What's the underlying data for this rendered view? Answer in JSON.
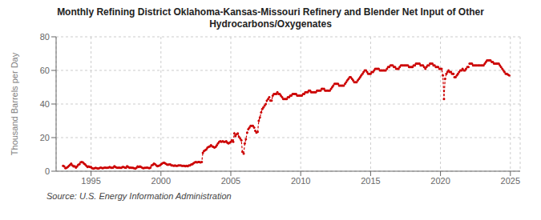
{
  "chart_data": {
    "type": "line",
    "title": "Monthly Refining District Oklahoma-Kansas-Missouri Refinery and Blender Net Input of Other\nHydrocarbons/Oxygenates",
    "y_label": "Thousand Barrels per Day",
    "annotations": [
      "Source: U.S. Energy Information Administration"
    ],
    "color": "#cc0000",
    "line_style": "dashed",
    "marker": "circle",
    "grid": true,
    "xlim": [
      1992.5,
      2025.7
    ],
    "xticks": [
      1995,
      2000,
      2005,
      2010,
      2015,
      2020,
      2025
    ],
    "ylim": [
      0,
      80
    ],
    "yticks": [
      0,
      20,
      40,
      60,
      80
    ],
    "x": [
      1993.0,
      1993.08,
      1993.17,
      1993.25,
      1993.33,
      1993.42,
      1993.5,
      1993.58,
      1993.67,
      1993.75,
      1993.83,
      1993.92,
      1994.0,
      1994.08,
      1994.17,
      1994.25,
      1994.33,
      1994.42,
      1994.5,
      1994.58,
      1994.67,
      1994.75,
      1994.83,
      1994.92,
      1995.0,
      1995.08,
      1995.17,
      1995.25,
      1995.33,
      1995.42,
      1995.5,
      1995.58,
      1995.67,
      1995.75,
      1995.83,
      1995.92,
      1996.0,
      1996.08,
      1996.17,
      1996.25,
      1996.33,
      1996.42,
      1996.5,
      1996.58,
      1996.67,
      1996.75,
      1996.83,
      1996.92,
      1997.0,
      1997.08,
      1997.17,
      1997.25,
      1997.33,
      1997.42,
      1997.5,
      1997.58,
      1997.67,
      1997.75,
      1997.83,
      1997.92,
      1998.0,
      1998.08,
      1998.17,
      1998.25,
      1998.33,
      1998.42,
      1998.5,
      1998.58,
      1998.67,
      1998.75,
      1998.83,
      1998.92,
      1999.0,
      1999.08,
      1999.17,
      1999.25,
      1999.33,
      1999.42,
      1999.5,
      1999.58,
      1999.67,
      1999.75,
      1999.83,
      1999.92,
      2000.0,
      2000.08,
      2000.17,
      2000.25,
      2000.33,
      2000.42,
      2000.5,
      2000.58,
      2000.67,
      2000.75,
      2000.83,
      2000.92,
      2001.0,
      2001.08,
      2001.17,
      2001.25,
      2001.33,
      2001.42,
      2001.5,
      2001.58,
      2001.67,
      2001.75,
      2001.83,
      2001.92,
      2002.0,
      2002.08,
      2002.17,
      2002.25,
      2002.33,
      2002.42,
      2002.5,
      2002.58,
      2002.67,
      2002.75,
      2002.83,
      2002.92,
      2003.0,
      2003.08,
      2003.17,
      2003.25,
      2003.33,
      2003.42,
      2003.5,
      2003.58,
      2003.67,
      2003.75,
      2003.83,
      2003.92,
      2004.0,
      2004.08,
      2004.17,
      2004.25,
      2004.33,
      2004.42,
      2004.5,
      2004.58,
      2004.67,
      2004.75,
      2004.83,
      2004.92,
      2005.0,
      2005.08,
      2005.17,
      2005.25,
      2005.33,
      2005.42,
      2005.5,
      2005.58,
      2005.67,
      2005.75,
      2005.83,
      2005.92,
      2006.0,
      2006.08,
      2006.17,
      2006.25,
      2006.33,
      2006.42,
      2006.5,
      2006.58,
      2006.67,
      2006.75,
      2006.83,
      2006.92,
      2007.0,
      2007.08,
      2007.17,
      2007.25,
      2007.33,
      2007.42,
      2007.5,
      2007.58,
      2007.67,
      2007.75,
      2007.83,
      2007.92,
      2008.0,
      2008.08,
      2008.17,
      2008.25,
      2008.33,
      2008.42,
      2008.5,
      2008.58,
      2008.67,
      2008.75,
      2008.83,
      2008.92,
      2009.0,
      2009.08,
      2009.17,
      2009.25,
      2009.33,
      2009.42,
      2009.5,
      2009.58,
      2009.67,
      2009.75,
      2009.83,
      2009.92,
      2010.0,
      2010.08,
      2010.17,
      2010.25,
      2010.33,
      2010.42,
      2010.5,
      2010.58,
      2010.67,
      2010.75,
      2010.83,
      2010.92,
      2011.0,
      2011.08,
      2011.17,
      2011.25,
      2011.33,
      2011.42,
      2011.5,
      2011.58,
      2011.67,
      2011.75,
      2011.83,
      2011.92,
      2012.0,
      2012.08,
      2012.17,
      2012.25,
      2012.33,
      2012.42,
      2012.5,
      2012.58,
      2012.67,
      2012.75,
      2012.83,
      2012.92,
      2013.0,
      2013.08,
      2013.17,
      2013.25,
      2013.33,
      2013.42,
      2013.5,
      2013.58,
      2013.67,
      2013.75,
      2013.83,
      2013.92,
      2014.0,
      2014.08,
      2014.17,
      2014.25,
      2014.33,
      2014.42,
      2014.5,
      2014.58,
      2014.67,
      2014.75,
      2014.83,
      2014.92,
      2015.0,
      2015.08,
      2015.17,
      2015.25,
      2015.33,
      2015.42,
      2015.5,
      2015.58,
      2015.67,
      2015.75,
      2015.83,
      2015.92,
      2016.0,
      2016.08,
      2016.17,
      2016.25,
      2016.33,
      2016.42,
      2016.5,
      2016.58,
      2016.67,
      2016.75,
      2016.83,
      2016.92,
      2017.0,
      2017.08,
      2017.17,
      2017.25,
      2017.33,
      2017.42,
      2017.5,
      2017.58,
      2017.67,
      2017.75,
      2017.83,
      2017.92,
      2018.0,
      2018.08,
      2018.17,
      2018.25,
      2018.33,
      2018.42,
      2018.5,
      2018.58,
      2018.67,
      2018.75,
      2018.83,
      2018.92,
      2019.0,
      2019.08,
      2019.17,
      2019.25,
      2019.33,
      2019.42,
      2019.5,
      2019.58,
      2019.67,
      2019.75,
      2019.83,
      2019.92,
      2020.0,
      2020.08,
      2020.17,
      2020.25,
      2020.33,
      2020.42,
      2020.5,
      2020.58,
      2020.67,
      2020.75,
      2020.83,
      2020.92,
      2021.0,
      2021.08,
      2021.17,
      2021.25,
      2021.33,
      2021.42,
      2021.5,
      2021.58,
      2021.67,
      2021.75,
      2021.83,
      2021.92,
      2022.0,
      2022.08,
      2022.17,
      2022.25,
      2022.33,
      2022.42,
      2022.5,
      2022.58,
      2022.67,
      2022.75,
      2022.83,
      2022.92,
      2023.0,
      2023.08,
      2023.17,
      2023.25,
      2023.33,
      2023.42,
      2023.5,
      2023.58,
      2023.67,
      2023.75,
      2023.83,
      2023.92,
      2024.0,
      2024.08,
      2024.17,
      2024.25,
      2024.33,
      2024.42,
      2024.5,
      2024.58,
      2024.67,
      2024.75,
      2024.83,
      2024.92
    ],
    "values": [
      3.2,
      2.8,
      1.8,
      2.0,
      2.5,
      3.2,
      3.8,
      4.5,
      3.5,
      2.8,
      3.0,
      2.2,
      2.8,
      3.8,
      4.2,
      5.2,
      5.5,
      5.2,
      4.5,
      4.0,
      3.2,
      2.5,
      2.8,
      2.5,
      2.5,
      1.8,
      1.5,
      1.8,
      2.0,
      1.8,
      1.5,
      1.8,
      2.2,
      2.0,
      1.8,
      2.0,
      2.2,
      2.0,
      2.0,
      2.2,
      2.5,
      2.2,
      2.0,
      2.2,
      3.0,
      2.5,
      2.2,
      2.0,
      2.2,
      2.0,
      2.0,
      2.5,
      2.5,
      2.2,
      2.0,
      3.0,
      2.5,
      2.0,
      2.2,
      2.0,
      2.0,
      1.8,
      1.5,
      2.0,
      2.8,
      2.5,
      2.8,
      2.5,
      2.0,
      1.8,
      2.0,
      2.0,
      2.2,
      2.0,
      1.8,
      2.2,
      3.5,
      3.8,
      4.5,
      4.2,
      3.5,
      3.0,
      3.2,
      3.5,
      4.0,
      4.5,
      5.0,
      5.0,
      4.5,
      4.0,
      3.8,
      4.0,
      4.0,
      3.5,
      3.5,
      3.2,
      3.5,
      3.2,
      3.2,
      3.5,
      3.5,
      3.5,
      3.2,
      3.2,
      3.2,
      3.0,
      3.2,
      3.0,
      3.5,
      3.5,
      4.0,
      4.2,
      4.8,
      5.2,
      5.5,
      5.2,
      5.5,
      5.5,
      5.2,
      5.5,
      11.0,
      12.0,
      12.5,
      13.0,
      14.0,
      14.5,
      14.8,
      15.5,
      14.8,
      14.5,
      14.0,
      14.5,
      15.5,
      16.5,
      17.5,
      17.8,
      17.5,
      17.8,
      17.5,
      17.5,
      17.8,
      17.0,
      16.5,
      17.0,
      17.5,
      18.5,
      17.5,
      22.5,
      21.0,
      22.0,
      22.5,
      20.5,
      19.5,
      18.5,
      11.5,
      10.5,
      16.5,
      19.0,
      23.0,
      25.0,
      26.0,
      27.0,
      27.0,
      27.0,
      26.0,
      24.0,
      23.0,
      23.5,
      30.0,
      32.0,
      35.0,
      37.0,
      38.0,
      39.0,
      40.0,
      42.0,
      43.0,
      44.0,
      42.0,
      42.0,
      45.0,
      46.0,
      46.0,
      46.0,
      47.0,
      46.0,
      46.0,
      45.0,
      44.0,
      43.0,
      43.0,
      43.0,
      43.0,
      44.0,
      44.0,
      45.0,
      45.0,
      46.0,
      46.0,
      46.0,
      46.0,
      45.0,
      45.0,
      45.0,
      45.0,
      45.0,
      46.0,
      46.0,
      47.0,
      47.0,
      47.0,
      48.0,
      48.0,
      47.0,
      47.0,
      47.0,
      47.0,
      47.0,
      48.0,
      48.0,
      48.0,
      48.0,
      49.0,
      49.0,
      49.0,
      48.0,
      48.0,
      48.0,
      48.0,
      48.0,
      49.0,
      50.0,
      51.0,
      52.0,
      52.0,
      52.0,
      52.0,
      51.0,
      51.0,
      51.0,
      51.0,
      51.0,
      52.0,
      53.0,
      54.0,
      55.0,
      56.0,
      56.0,
      55.0,
      54.0,
      53.0,
      53.0,
      53.0,
      54.0,
      55.0,
      56.0,
      57.0,
      58.0,
      59.0,
      60.0,
      60.0,
      59.0,
      58.0,
      58.0,
      58.0,
      59.0,
      59.0,
      60.0,
      61.0,
      61.0,
      61.0,
      61.0,
      60.0,
      60.0,
      60.0,
      60.0,
      60.0,
      60.0,
      61.0,
      62.0,
      62.0,
      63.0,
      63.0,
      63.0,
      62.0,
      62.0,
      61.0,
      61.0,
      61.0,
      62.0,
      63.0,
      63.0,
      63.0,
      63.0,
      63.0,
      63.0,
      63.0,
      62.0,
      62.0,
      62.0,
      62.0,
      63.0,
      63.0,
      64.0,
      64.0,
      64.0,
      64.0,
      63.0,
      63.0,
      63.0,
      62.0,
      61.0,
      62.0,
      63.0,
      63.0,
      64.0,
      64.0,
      64.0,
      63.0,
      63.0,
      62.0,
      62.0,
      62.0,
      61.0,
      61.0,
      61.0,
      57.0,
      43.0,
      55.0,
      58.0,
      59.0,
      60.0,
      59.0,
      59.0,
      58.0,
      58.0,
      56.0,
      56.0,
      57.0,
      58.0,
      59.0,
      60.0,
      60.0,
      61.0,
      60.0,
      60.0,
      61.0,
      62.0,
      62.0,
      64.0,
      64.0,
      64.0,
      63.0,
      63.0,
      63.0,
      63.0,
      63.0,
      63.0,
      63.0,
      63.0,
      63.0,
      63.0,
      64.0,
      65.0,
      66.0,
      66.0,
      66.0,
      66.0,
      65.0,
      65.0,
      64.0,
      64.0,
      64.0,
      64.0,
      64.0,
      63.0,
      62.0,
      61.0,
      60.0,
      59.0,
      58.0,
      58.0,
      57.5,
      57.0
    ]
  }
}
